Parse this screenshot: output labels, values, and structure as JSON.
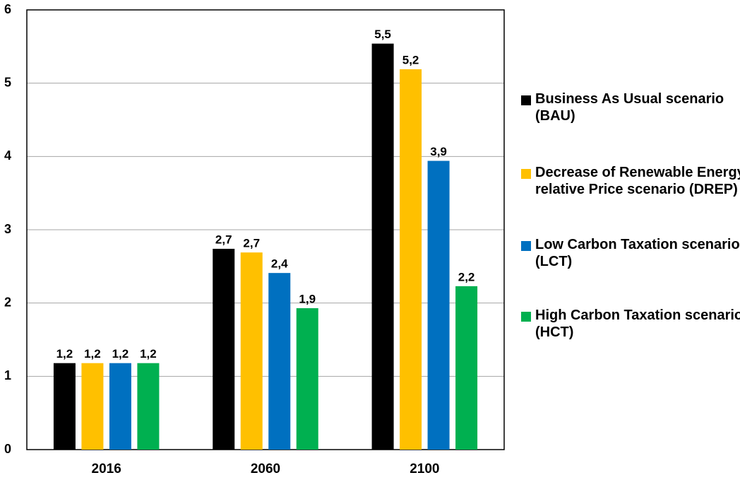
{
  "chart_data": {
    "type": "bar",
    "categories": [
      "2016",
      "2060",
      "2100"
    ],
    "series": [
      {
        "name": "Business As Usual scenario (BAU)",
        "color": "#000000",
        "values": [
          1.18,
          2.74,
          5.54
        ],
        "value_labels": [
          "1,2",
          "2,7",
          "5,5"
        ]
      },
      {
        "name": "Decrease of Renewable Energy relative Price scenario (DREP)",
        "color": "#ffc000",
        "values": [
          1.18,
          2.69,
          5.19
        ],
        "value_labels": [
          "1,2",
          "2,7",
          "5,2"
        ]
      },
      {
        "name": "Low Carbon Taxation scenario (LCT)",
        "color": "#0070c0",
        "values": [
          1.18,
          2.41,
          3.94
        ],
        "value_labels": [
          "1,2",
          "2,4",
          "3,9"
        ]
      },
      {
        "name": "High Carbon Taxation scenario (HCT)",
        "color": "#00b050",
        "values": [
          1.18,
          1.93,
          2.23
        ],
        "value_labels": [
          "1,2",
          "1,9",
          "2,2"
        ]
      }
    ],
    "ylim": [
      0,
      6
    ],
    "yticks": [
      0,
      1,
      2,
      3,
      4,
      5,
      6
    ],
    "grid": true,
    "legend": "right"
  }
}
